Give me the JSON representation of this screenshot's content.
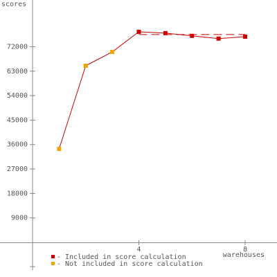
{
  "chart_data": {
    "type": "line",
    "y_label": "scores",
    "x_label": "warehouses",
    "series": [
      {
        "name": "Not included in score calculation",
        "color": "#f0a800",
        "x": [
          1,
          2,
          3
        ],
        "values": [
          34400,
          65000,
          70100
        ]
      },
      {
        "name": "Included in score calculation",
        "color": "#cc0000",
        "x": [
          4,
          5,
          6,
          7,
          8
        ],
        "values": [
          77500,
          77000,
          76000,
          75000,
          75700
        ]
      }
    ],
    "line_color": "#cc0000",
    "reference_line": {
      "x": [
        4,
        8
      ],
      "value": 76500
    },
    "xlim": [
      0,
      9.2
    ],
    "xticks": [
      4,
      8
    ],
    "ylim": [
      -10200,
      89200
    ],
    "yticks": [
      9000,
      18000,
      27000,
      36000,
      45000,
      54000,
      63000,
      72000
    ]
  }
}
